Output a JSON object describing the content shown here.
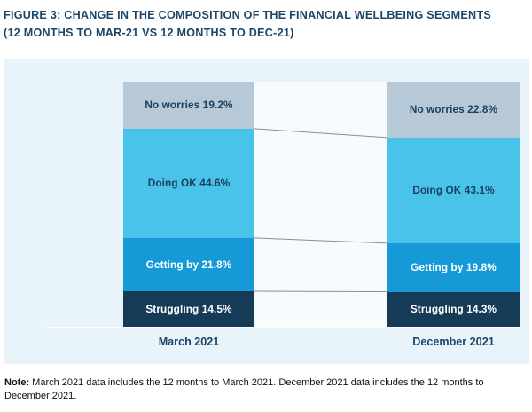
{
  "title": {
    "line1": "FIGURE 3: CHANGE IN THE COMPOSITION OF THE FINANCIAL WELLBEING SEGMENTS",
    "line2": "(12 MONTHS TO MAR-21 VS 12 MONTHS TO DEC-21)"
  },
  "note": {
    "label": "Note:",
    "text": " March 2021 data includes the 12 months to March 2021. December 2021 data includes the 12 months to December 2021."
  },
  "colors": {
    "title_text": "#1c4668",
    "card_background": "#e9f3fa",
    "flow_gap_background": "#f7fbfd",
    "connector_line": "#7f929d",
    "axis_baseline": "#ffffff",
    "note_text": "#111111"
  },
  "chart_data": {
    "type": "bar",
    "subtype": "100-percent-stacked-columns-with-flow-lines",
    "title": "FIGURE 3: CHANGE IN THE COMPOSITION OF THE FINANCIAL WELLBEING SEGMENTS (12 MONTHS TO MAR-21 VS 12 MONTHS TO DEC-21)",
    "categories": [
      "March 2021",
      "December 2021"
    ],
    "series": [
      {
        "name": "No worries",
        "values": [
          19.2,
          22.8
        ],
        "color": "#b7c9d6",
        "text_color": "#1c4060"
      },
      {
        "name": "Doing OK",
        "values": [
          44.6,
          43.1
        ],
        "color": "#49c3e9",
        "text_color": "#1c4060"
      },
      {
        "name": "Getting by",
        "values": [
          21.8,
          19.8
        ],
        "color": "#159ad7",
        "text_color": "#ffffff"
      },
      {
        "name": "Struggling",
        "values": [
          14.5,
          14.3
        ],
        "color": "#163b57",
        "text_color": "#ffffff"
      }
    ],
    "segment_labels": [
      [
        "No worries 19.2%",
        "Doing OK 44.6%",
        "Getting by 21.8%",
        "Struggling 14.5%"
      ],
      [
        "No worries 22.8%",
        "Doing OK 43.1%",
        "Getting by 19.8%",
        "Struggling 14.3%"
      ]
    ],
    "value_suffix": "%",
    "ylim": [
      0,
      100
    ],
    "grid": false,
    "legend": "none (labels inside segments)"
  }
}
